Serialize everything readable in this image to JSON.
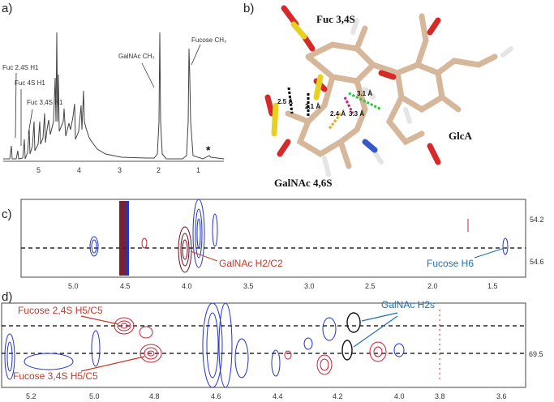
{
  "panels": {
    "a": {
      "letter": "a)",
      "peaks": [
        {
          "label": "Fuc 2,4S H1"
        },
        {
          "label": "Fuc 4S H1"
        },
        {
          "label": "Fuc 3,4S H1"
        },
        {
          "label": "GalNAc CH₃"
        },
        {
          "label": "Fucose CH₃"
        }
      ],
      "star": "*",
      "ticks": [
        "5",
        "4",
        "3",
        "2",
        "1"
      ]
    },
    "b": {
      "letter": "b)",
      "residues": {
        "top": "Fuc 3,4S",
        "right": "GlcA",
        "bottom": "GalNAc 4,6S"
      },
      "distances": [
        "2.5 Å",
        "2.1 Å",
        "2.4 Å",
        "3.3 Å",
        "3.1 Å"
      ]
    },
    "c": {
      "letter": "c)",
      "annotations": {
        "galnac": "GalNAc H2/C2",
        "fucose": "Fucose H6"
      },
      "x_ticks": [
        "5.0",
        "4.5",
        "4.0",
        "3.5",
        "3.0",
        "2.5",
        "2.0",
        "1.5"
      ],
      "y_ticks": [
        "54.2",
        "54.6"
      ]
    },
    "d": {
      "letter": "d)",
      "annotations": {
        "fuc24": "Fucose 2,4S H5/C5",
        "fuc34": "Fucose 3,4S H5/C5",
        "galnac": "GalNAc H2s"
      },
      "x_ticks": [
        "5.2",
        "5.0",
        "4.8",
        "4.6",
        "4.4",
        "4.2",
        "4.0",
        "3.8",
        "3.6"
      ],
      "y_ticks": [
        "69.5"
      ]
    }
  },
  "colors": {
    "positive": "#2233cc",
    "negative": "#cc2233",
    "dark_red": "#6b0f1f",
    "guide": "#000000"
  }
}
